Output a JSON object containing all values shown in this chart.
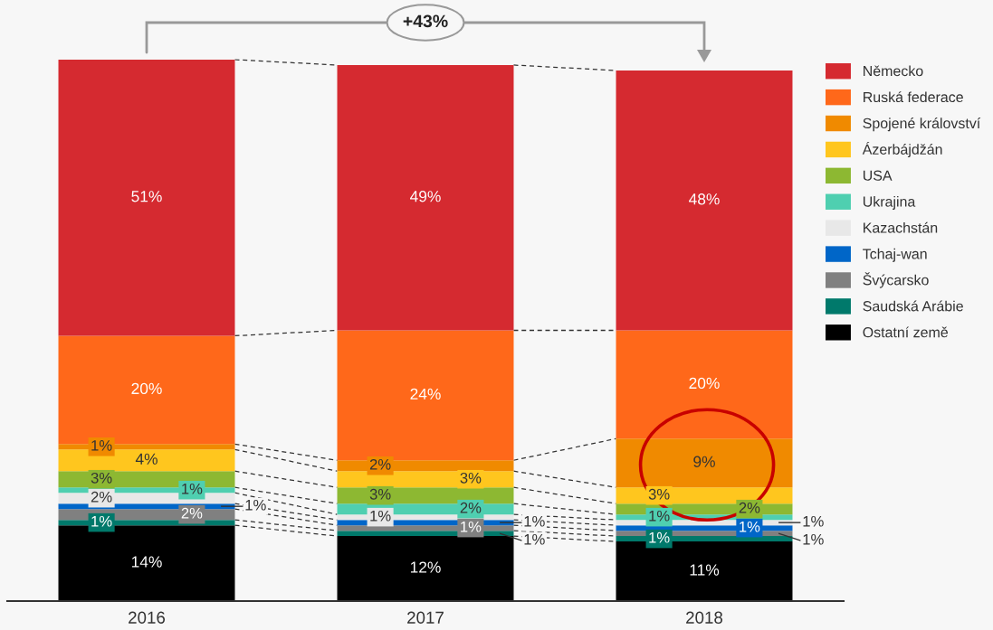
{
  "chart_data": {
    "type": "bar",
    "stacked": true,
    "legend": "top right",
    "categories": [
      "2016",
      "2017",
      "2018"
    ],
    "series": [
      {
        "name": "Ostatní země",
        "color": "#000000",
        "values": [
          14,
          12,
          11
        ],
        "value_labels": [
          "14%",
          "12%",
          "11%"
        ]
      },
      {
        "name": "Saudská Arábie",
        "color": "#00796b",
        "values": [
          1,
          1,
          1
        ],
        "value_labels": [
          "1%",
          "1%",
          "1%"
        ]
      },
      {
        "name": "Švýcarsko",
        "color": "#808080",
        "values": [
          2,
          1,
          1
        ],
        "value_labels": [
          "2%",
          "1%",
          "1%"
        ]
      },
      {
        "name": "Tchaj-wan",
        "color": "#0066c8",
        "values": [
          1,
          1,
          1
        ],
        "value_labels": [
          "1%",
          "1%",
          "1%"
        ]
      },
      {
        "name": "Kazachstán",
        "color": "#e8e8e8",
        "values": [
          2,
          1,
          1
        ],
        "value_labels": [
          "2%",
          "1%",
          "1%"
        ]
      },
      {
        "name": "Ukrajina",
        "color": "#4fcfb0",
        "values": [
          1,
          2,
          1
        ],
        "value_labels": [
          "1%",
          "2%",
          "1%"
        ]
      },
      {
        "name": "USA",
        "color": "#8db832",
        "values": [
          3,
          3,
          2
        ],
        "value_labels": [
          "3%",
          "3%",
          "2%"
        ]
      },
      {
        "name": "Ázerbájdžán",
        "color": "#ffc61e",
        "values": [
          4,
          3,
          3
        ],
        "value_labels": [
          "4%",
          "3%",
          "3%"
        ]
      },
      {
        "name": "Spojené království",
        "color": "#f08a00",
        "values": [
          1,
          2,
          9
        ],
        "value_labels": [
          "1%",
          "2%",
          "9%"
        ]
      },
      {
        "name": "Ruská federace",
        "color": "#ff681a",
        "values": [
          20,
          24,
          20
        ],
        "value_labels": [
          "20%",
          "24%",
          "20%"
        ]
      },
      {
        "name": "Německo",
        "color": "#d52a30",
        "values": [
          51,
          49,
          48
        ],
        "value_labels": [
          "51%",
          "49%",
          "48%"
        ]
      }
    ],
    "annotations": [
      "+43%"
    ]
  }
}
